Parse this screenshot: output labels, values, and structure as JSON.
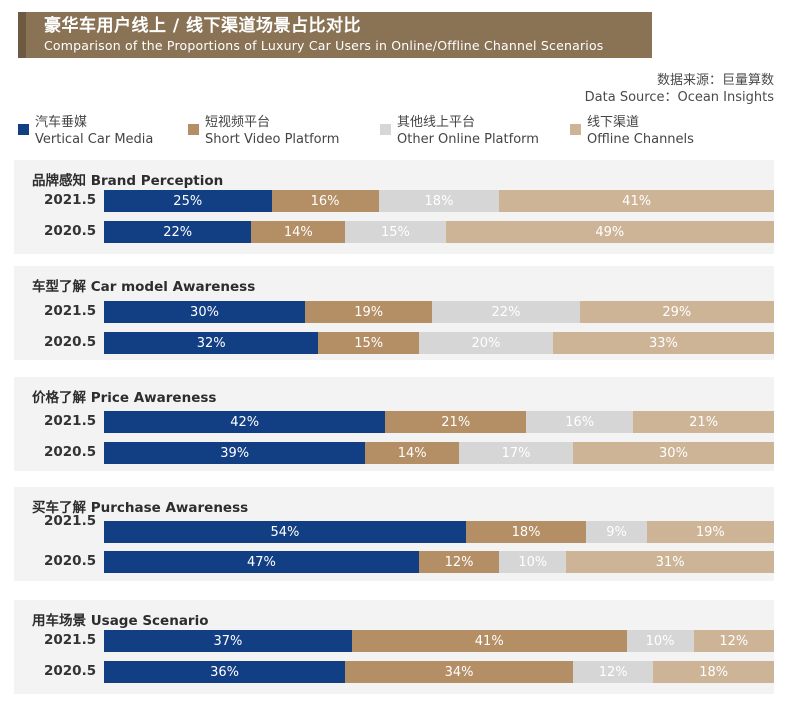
{
  "header": {
    "title_zh": "豪华车用户线上 / 线下渠道场景占比对比",
    "title_en": "Comparison of the Proportions of Luxury Car Users in Online/Offline Channel Scenarios"
  },
  "source": {
    "zh": "数据来源：巨量算数",
    "en": "Data Source：Ocean Insights"
  },
  "colors": {
    "vertical_car_media": "#123f84",
    "short_video_platform": "#b48e64",
    "other_online_platform": "#d6d6d6",
    "offline_channels": "#cdb496"
  },
  "legend": [
    {
      "zh": "汽车垂媒",
      "en": "Vertical Car Media",
      "color": "#123f84"
    },
    {
      "zh": "短视频平台",
      "en": "Short Video Platform",
      "color": "#b48e64"
    },
    {
      "zh": "其他线上平台",
      "en": "Other Online Platform",
      "color": "#d6d6d6"
    },
    {
      "zh": "线下渠道",
      "en": "Offline Channels",
      "color": "#cdb496"
    }
  ],
  "chart_data": {
    "type": "bar",
    "orientation": "horizontal",
    "stacked": true,
    "unit": "%",
    "series_names": [
      "Vertical Car Media",
      "Short Video Platform",
      "Other Online Platform",
      "Offline Channels"
    ],
    "groups": [
      {
        "title": "品牌感知 Brand Perception",
        "rows": [
          {
            "label": "2021.5",
            "values": [
              25,
              16,
              18,
              41
            ]
          },
          {
            "label": "2020.5",
            "values": [
              22,
              14,
              15,
              49
            ]
          }
        ]
      },
      {
        "title": "车型了解 Car model Awareness",
        "rows": [
          {
            "label": "2021.5",
            "values": [
              30,
              19,
              22,
              29
            ]
          },
          {
            "label": "2020.5",
            "values": [
              32,
              15,
              20,
              33
            ]
          }
        ]
      },
      {
        "title": "价格了解 Price Awareness",
        "rows": [
          {
            "label": "2021.5",
            "values": [
              42,
              21,
              16,
              21
            ]
          },
          {
            "label": "2020.5",
            "values": [
              39,
              14,
              17,
              30
            ]
          }
        ]
      },
      {
        "title": "买车了解 Purchase Awareness",
        "rows": [
          {
            "label": "2021.5",
            "values": [
              54,
              18,
              9,
              19
            ]
          },
          {
            "label": "2020.5",
            "values": [
              47,
              12,
              10,
              31
            ]
          }
        ]
      },
      {
        "title": "用车场景 Usage Scenario",
        "rows": [
          {
            "label": "2021.5",
            "values": [
              37,
              41,
              10,
              12
            ]
          },
          {
            "label": "2020.5",
            "values": [
              36,
              34,
              12,
              18
            ]
          }
        ]
      }
    ]
  }
}
